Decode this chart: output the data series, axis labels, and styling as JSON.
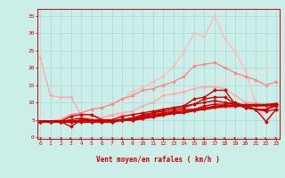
{
  "bg_color": "#cceee8",
  "grid_color": "#aadddd",
  "xlabel": "Vent moyen/en rafales ( km/h )",
  "xlabel_color": "#cc0000",
  "tick_color": "#cc0000",
  "x_ticks": [
    0,
    1,
    2,
    3,
    4,
    5,
    6,
    7,
    8,
    9,
    10,
    11,
    12,
    13,
    14,
    15,
    16,
    17,
    18,
    19,
    20,
    21,
    22,
    23
  ],
  "y_ticks": [
    0,
    5,
    10,
    15,
    20,
    25,
    30,
    35
  ],
  "xlim": [
    -0.3,
    23.3
  ],
  "ylim": [
    -0.5,
    37
  ],
  "series": [
    {
      "x": [
        0,
        1,
        2,
        3,
        4,
        5,
        6,
        7,
        8,
        9,
        10,
        11,
        12,
        13,
        14,
        15,
        16,
        17,
        18,
        19,
        20,
        21,
        22,
        23
      ],
      "y": [
        4.5,
        4.5,
        4.5,
        4.5,
        4.5,
        4.5,
        4.5,
        4.5,
        5.0,
        5.0,
        5.5,
        6.0,
        6.5,
        7.0,
        7.2,
        7.8,
        8.2,
        8.7,
        9.0,
        9.1,
        9.2,
        9.2,
        9.2,
        9.5
      ],
      "color": "#cc0000",
      "lw": 2.2,
      "marker": "D",
      "ms": 2.0,
      "zorder": 6
    },
    {
      "x": [
        0,
        1,
        2,
        3,
        4,
        5,
        6,
        7,
        8,
        9,
        10,
        11,
        12,
        13,
        14,
        15,
        16,
        17,
        18,
        19,
        20,
        21,
        22,
        23
      ],
      "y": [
        4.5,
        4.5,
        4.5,
        5.0,
        5.5,
        5.0,
        4.5,
        4.5,
        5.0,
        5.5,
        6.0,
        6.5,
        7.0,
        7.5,
        8.0,
        8.0,
        9.0,
        9.5,
        9.5,
        10.0,
        9.0,
        8.0,
        8.0,
        9.0
      ],
      "color": "#cc0000",
      "lw": 1.0,
      "marker": "D",
      "ms": 1.8,
      "zorder": 5
    },
    {
      "x": [
        0,
        1,
        2,
        3,
        4,
        5,
        6,
        7,
        8,
        9,
        10,
        11,
        12,
        13,
        14,
        15,
        16,
        17,
        18,
        19,
        20,
        21,
        22,
        23
      ],
      "y": [
        4.5,
        4.5,
        4.5,
        6.0,
        6.5,
        6.5,
        5.0,
        4.5,
        5.0,
        5.5,
        6.0,
        7.0,
        8.0,
        8.5,
        9.0,
        11.0,
        11.5,
        13.5,
        13.5,
        9.5,
        9.0,
        8.0,
        4.5,
        8.0
      ],
      "color": "#cc0000",
      "lw": 1.0,
      "marker": "D",
      "ms": 1.8,
      "zorder": 4
    },
    {
      "x": [
        0,
        1,
        2,
        3,
        4,
        5,
        6,
        7,
        8,
        9,
        10,
        11,
        12,
        13,
        14,
        15,
        16,
        17,
        18,
        19,
        20,
        21,
        22,
        23
      ],
      "y": [
        4.5,
        4.5,
        4.5,
        3.0,
        5.0,
        4.5,
        4.5,
        4.5,
        5.0,
        5.5,
        6.5,
        7.0,
        7.5,
        8.0,
        8.5,
        9.5,
        11.0,
        11.5,
        11.5,
        9.5,
        8.5,
        8.0,
        8.0,
        9.5
      ],
      "color": "#cc0000",
      "lw": 1.0,
      "marker": "D",
      "ms": 1.8,
      "zorder": 4
    },
    {
      "x": [
        0,
        1,
        2,
        3,
        4,
        5,
        6,
        7,
        8,
        9,
        10,
        11,
        12,
        13,
        14,
        15,
        16,
        17,
        18,
        19,
        20,
        21,
        22,
        23
      ],
      "y": [
        4.5,
        4.5,
        4.5,
        4.5,
        5.0,
        5.0,
        5.0,
        5.0,
        6.0,
        6.5,
        7.0,
        7.5,
        8.0,
        8.5,
        9.0,
        9.5,
        10.0,
        10.5,
        10.0,
        9.5,
        8.5,
        8.0,
        7.5,
        8.0
      ],
      "color": "#cc0000",
      "lw": 1.0,
      "marker": "D",
      "ms": 1.8,
      "zorder": 4
    },
    {
      "x": [
        0,
        1,
        2,
        3,
        4,
        5,
        6,
        7,
        8,
        9,
        10,
        11,
        12,
        13,
        14,
        15,
        16,
        17,
        18,
        19,
        20,
        21,
        22,
        23
      ],
      "y": [
        23.0,
        12.0,
        11.5,
        11.5,
        6.5,
        6.5,
        5.5,
        6.5,
        7.0,
        7.5,
        9.0,
        10.0,
        12.0,
        12.5,
        13.0,
        14.0,
        14.5,
        14.5,
        14.0,
        12.0,
        10.0,
        10.0,
        9.0,
        9.0
      ],
      "color": "#ffaaaa",
      "lw": 1.0,
      "marker": "o",
      "ms": 2.0,
      "zorder": 2
    },
    {
      "x": [
        0,
        1,
        2,
        3,
        4,
        5,
        6,
        7,
        8,
        9,
        10,
        11,
        12,
        13,
        14,
        15,
        16,
        17,
        18,
        19,
        20,
        21,
        22,
        23
      ],
      "y": [
        4.5,
        4.5,
        5.0,
        6.5,
        7.0,
        8.0,
        8.5,
        9.5,
        11.0,
        12.0,
        13.5,
        14.0,
        15.0,
        16.0,
        17.5,
        20.5,
        21.0,
        21.5,
        20.0,
        18.5,
        17.5,
        16.5,
        15.0,
        16.0
      ],
      "color": "#ff8888",
      "lw": 1.0,
      "marker": "o",
      "ms": 2.0,
      "zorder": 3
    },
    {
      "x": [
        0,
        1,
        2,
        3,
        4,
        5,
        6,
        7,
        8,
        9,
        10,
        11,
        12,
        13,
        14,
        15,
        16,
        17,
        18,
        19,
        20,
        21,
        22,
        23
      ],
      "y": [
        4.5,
        4.5,
        5.0,
        6.5,
        7.0,
        8.0,
        8.5,
        9.5,
        11.0,
        13.0,
        14.5,
        16.0,
        17.5,
        20.5,
        24.5,
        30.0,
        29.0,
        35.0,
        28.5,
        24.5,
        19.5,
        9.5,
        4.5,
        8.5
      ],
      "color": "#ffbbbb",
      "lw": 1.0,
      "marker": "o",
      "ms": 2.0,
      "zorder": 2
    },
    {
      "x": [
        0,
        23
      ],
      "y": [
        4.5,
        9.5
      ],
      "color": "#ffbbbb",
      "lw": 1.0,
      "marker": null,
      "ms": 0,
      "zorder": 1
    },
    {
      "x": [
        0,
        23
      ],
      "y": [
        4.5,
        20.0
      ],
      "color": "#ffdddd",
      "lw": 1.0,
      "marker": null,
      "ms": 0,
      "zorder": 1
    }
  ]
}
